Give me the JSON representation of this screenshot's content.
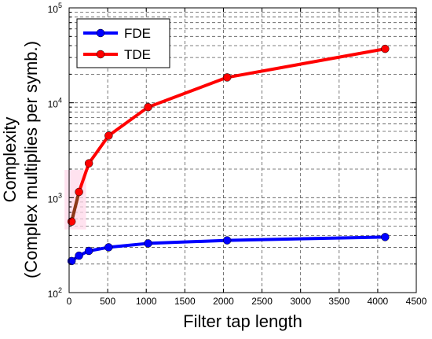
{
  "chart_data": {
    "type": "line",
    "xlabel": "Filter tap length",
    "ylabel_lines": [
      "Complexity",
      "(Complex multiplies per symb.)"
    ],
    "xlim": [
      0,
      4500
    ],
    "ylim": [
      100,
      100000
    ],
    "yscale": "log",
    "grid": true,
    "legend_position": "top-left",
    "x_ticks": [
      0,
      500,
      1000,
      1500,
      2000,
      2500,
      3000,
      3500,
      4000,
      4500
    ],
    "x_tick_labels": [
      "0",
      "500",
      "1000",
      "1500",
      "2000",
      "2500",
      "3000",
      "3500",
      "4000",
      "4500"
    ],
    "y_ticks": [
      100,
      1000,
      10000,
      100000
    ],
    "y_tick_labels": [
      {
        "base": "10",
        "exp": "2"
      },
      {
        "base": "10",
        "exp": "3"
      },
      {
        "base": "10",
        "exp": "4"
      },
      {
        "base": "10",
        "exp": "5"
      }
    ],
    "series": [
      {
        "name": "FDE",
        "color": "#0000ff",
        "x": [
          32,
          128,
          256,
          512,
          1024,
          2048,
          4096
        ],
        "y": [
          215,
          245,
          275,
          300,
          330,
          355,
          385
        ]
      },
      {
        "name": "TDE",
        "color": "#ff0000",
        "highlight_color": "#8b3a1a",
        "highlight_segment": [
          0,
          1
        ],
        "x": [
          32,
          128,
          256,
          512,
          1024,
          2048,
          4096
        ],
        "y": [
          560,
          1150,
          2300,
          4500,
          9000,
          18500,
          37000
        ]
      }
    ]
  }
}
